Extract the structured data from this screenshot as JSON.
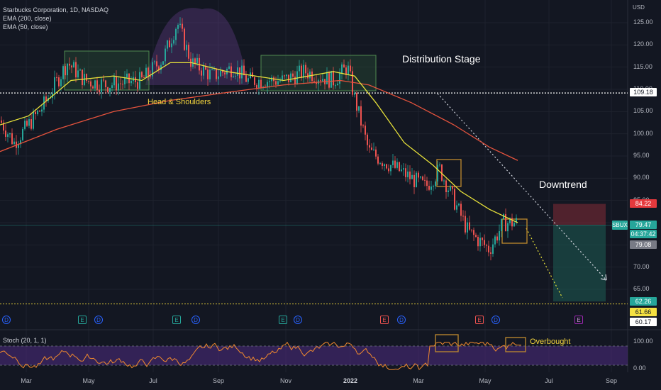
{
  "legend": {
    "title": "Starbucks Corporation, 1D, NASDAQ",
    "ema200": "EMA (200, close)",
    "ema50": "EMA (50, close)"
  },
  "stoch_legend": "Stoch (20, 1, 1)",
  "currency": "USD",
  "price_axis": [
    "125.00",
    "120.00",
    "115.00",
    "110.00",
    "105.00",
    "100.00",
    "95.00",
    "90.00",
    "85.00",
    "75.00",
    "70.00",
    "65.00"
  ],
  "stoch_axis": [
    "100.00",
    "0.00"
  ],
  "time_axis": [
    "Mar",
    "May",
    "Jul",
    "Sep",
    "Nov",
    "2022",
    "Mar",
    "May",
    "Jul",
    "Sep"
  ],
  "annotations": {
    "distribution": "Distribution Stage",
    "head_shoulders": "Head & Shoulders",
    "downtrend": "Downtrend",
    "overbought": "Overbought"
  },
  "symbol": "SBUX",
  "price_tags": {
    "neckline": "109.18",
    "stop": "84.22",
    "last": "79.47",
    "countdown": "04:37:42",
    "prev": "79.08",
    "target": "62.26",
    "support1": "61.66",
    "support2": "60.17"
  },
  "events": [
    {
      "type": "D",
      "cls": "d"
    },
    {
      "type": "E",
      "cls": "e"
    },
    {
      "type": "D",
      "cls": "d"
    },
    {
      "type": "E",
      "cls": "e"
    },
    {
      "type": "D",
      "cls": "d"
    },
    {
      "type": "E",
      "cls": "e"
    },
    {
      "type": "D",
      "cls": "d"
    },
    {
      "type": "E",
      "cls": "e"
    },
    {
      "type": "D",
      "cls": "d"
    },
    {
      "type": "E",
      "cls": "er"
    },
    {
      "type": "D",
      "cls": "d"
    },
    {
      "type": "E",
      "cls": "er"
    },
    {
      "type": "D",
      "cls": "d"
    },
    {
      "type": "E",
      "cls": "ep"
    }
  ],
  "colors": {
    "bg": "#131722",
    "up": "#26a69a",
    "down": "#ef5350",
    "ema50": "#e8e23a",
    "ema200": "#e5533d",
    "stoch": "#f28a2e",
    "stoch_band": "#4a2a7a",
    "annotation_yellow": "#f5d63d",
    "box": "#c08a2e"
  },
  "chart_data": {
    "type": "line",
    "symbol": "SBUX",
    "timeframe": "1D",
    "ylim": [
      58,
      128
    ],
    "x": [
      "Mar",
      "May",
      "Jul",
      "Sep",
      "Nov",
      "2022",
      "Mar",
      "May",
      "Jul",
      "Sep"
    ],
    "series": [
      {
        "name": "EMA (50, close)",
        "values": [
          101,
          110,
          110,
          114,
          112,
          113,
          100,
          88,
          80,
          null
        ]
      },
      {
        "name": "EMA (200, close)",
        "values": [
          92,
          97,
          102,
          106,
          109,
          110,
          108,
          101,
          null,
          null
        ]
      }
    ],
    "levels": [
      109.18,
      62.26
    ],
    "stoch_range": [
      0,
      100
    ]
  }
}
